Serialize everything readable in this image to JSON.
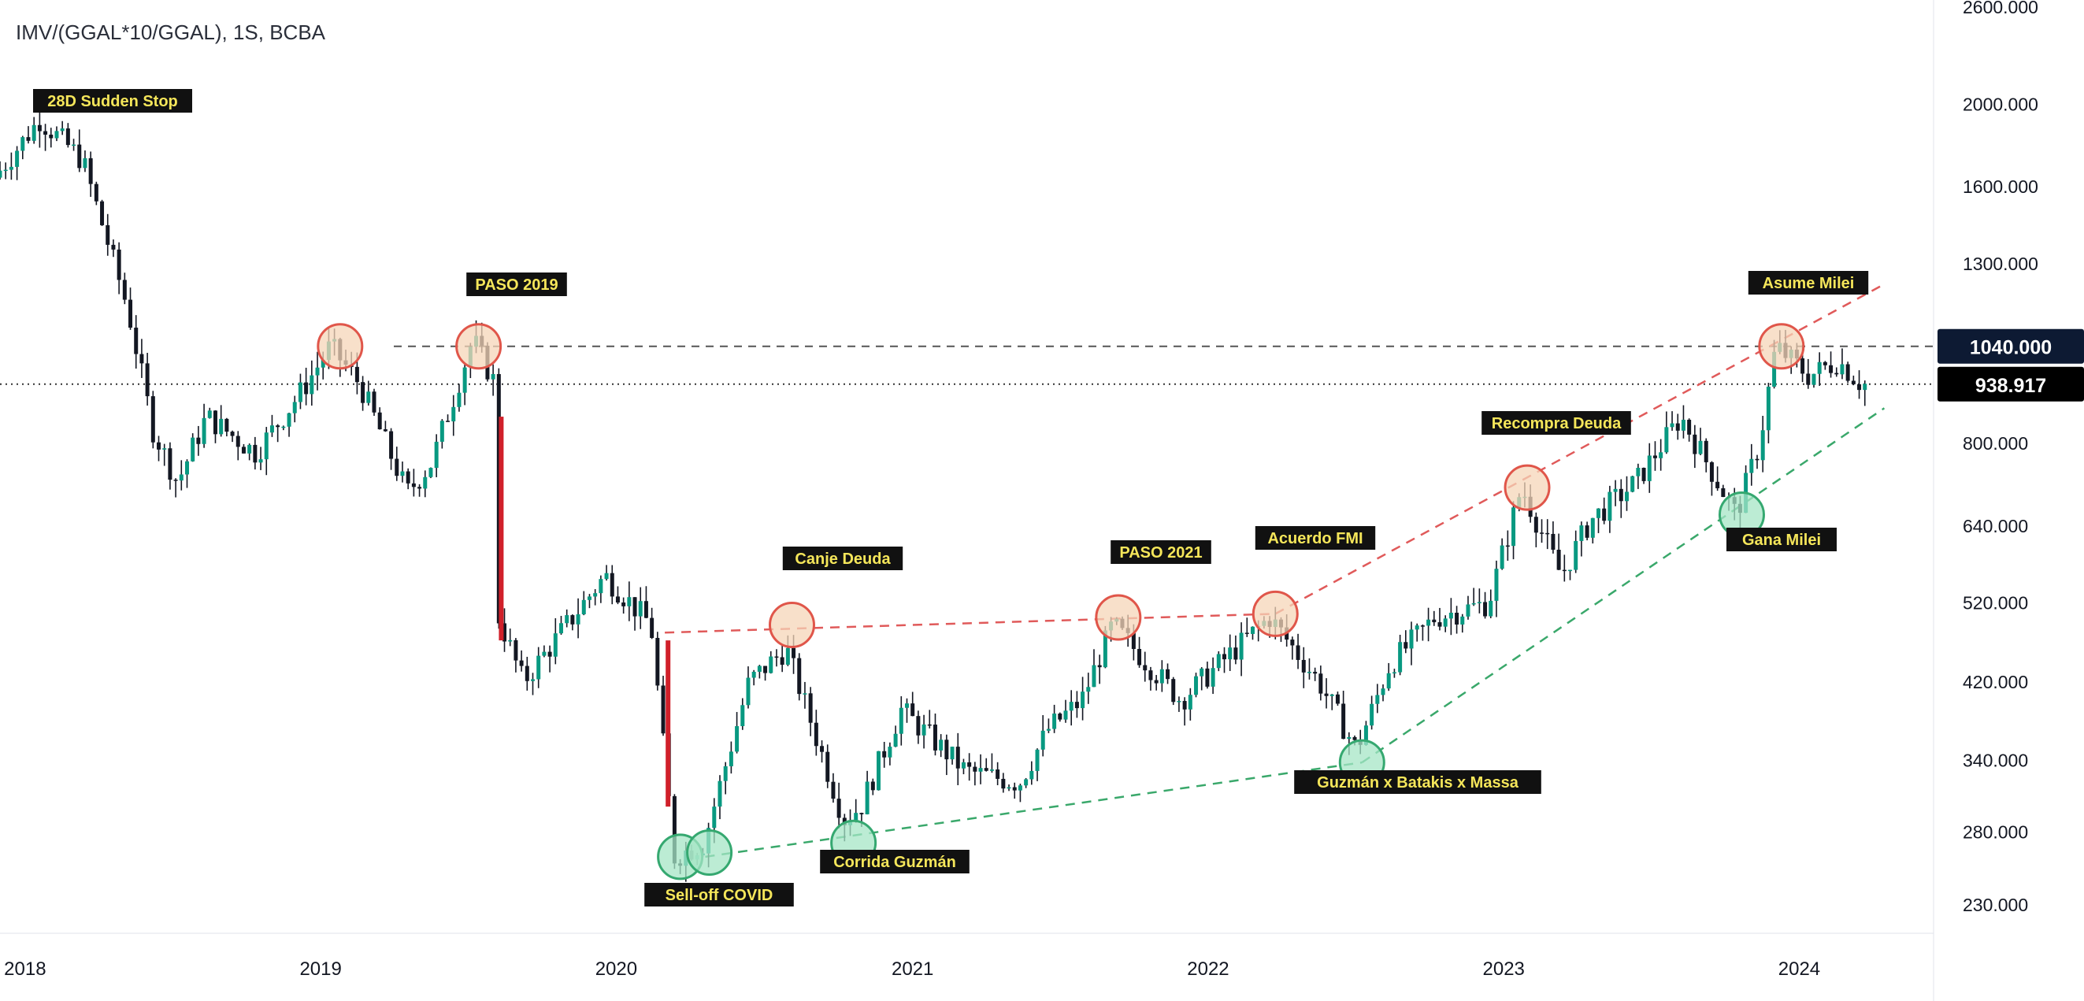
{
  "header": {
    "symbol_title": "IMV/(GGAL*10/GGAL), 1S, BCBA"
  },
  "price_scale": {
    "ticks": [
      "2600.000",
      "2000.000",
      "1600.000",
      "1300.000",
      "1040.000",
      "800.000",
      "640.000",
      "520.000",
      "420.000",
      "340.000",
      "280.000",
      "230.000"
    ],
    "tick_values": [
      2600,
      2000,
      1600,
      1300,
      1040,
      800,
      640,
      520,
      420,
      340,
      280,
      230
    ],
    "last_price_label": "938.917",
    "last_price": 938.917,
    "level_label": "1040.000",
    "level": 1040
  },
  "time_scale": {
    "labels": [
      "2018",
      "2019",
      "2020",
      "2021",
      "2022",
      "2023",
      "2024"
    ]
  },
  "colors": {
    "up": "#089981",
    "down": "#131722",
    "wick": "#131722",
    "red_line": "#e05a5a",
    "green_line": "#3aa86b",
    "grey_line": "#555555",
    "badge_dark": "#0d1a33",
    "badge_black": "#000000",
    "label_bg": "#111111",
    "label_text": "#f5e65a",
    "circle_red_fill": "#f6d6b8",
    "circle_red_stroke": "#e0564a",
    "circle_green_fill": "#a6e6c6",
    "circle_green_stroke": "#35a870"
  },
  "annotations": {
    "sudden_stop": "28D Sudden Stop",
    "paso_2019": "PASO 2019",
    "canje_deuda": "Canje Deuda",
    "paso_2021": "PASO 2021",
    "acuerdo_fmi": "Acuerdo FMI",
    "recompra_deuda": "Recompra Deuda",
    "asume_milei": "Asume Milei",
    "sell_off_covid": "Sell-off COVID",
    "corrida_guzman": "Corrida Guzmán",
    "guzman_batakis_massa": "Guzmán x Batakis x Massa",
    "gana_milei": "Gana Milei"
  },
  "chart_data": {
    "type": "candlestick",
    "title": "IMV/(GGAL*10/GGAL), 1S, BCBA",
    "interval": "1S",
    "scale": "log",
    "ylim": [
      220,
      2650
    ],
    "xlim": [
      "2017-12",
      "2024-06"
    ],
    "grid": false,
    "approx_path": [
      {
        "date": "2017-12-01",
        "value": 1640
      },
      {
        "date": "2018-01-26",
        "value": 1920
      },
      {
        "date": "2018-03-20",
        "value": 1720
      },
      {
        "date": "2018-05-15",
        "value": 1150
      },
      {
        "date": "2018-06-15",
        "value": 830
      },
      {
        "date": "2018-07-15",
        "value": 720
      },
      {
        "date": "2018-08-20",
        "value": 860
      },
      {
        "date": "2018-10-20",
        "value": 780
      },
      {
        "date": "2018-12-15",
        "value": 920
      },
      {
        "date": "2019-01-20",
        "value": 1040
      },
      {
        "date": "2019-02-25",
        "value": 940
      },
      {
        "date": "2019-04-25",
        "value": 700
      },
      {
        "date": "2019-05-25",
        "value": 760
      },
      {
        "date": "2019-07-15",
        "value": 1060
      },
      {
        "date": "2019-08-09",
        "value": 950
      },
      {
        "date": "2019-08-16",
        "value": 500
      },
      {
        "date": "2019-09-15",
        "value": 420
      },
      {
        "date": "2019-12-25",
        "value": 560
      },
      {
        "date": "2020-02-20",
        "value": 490
      },
      {
        "date": "2020-03-20",
        "value": 262
      },
      {
        "date": "2020-04-25",
        "value": 272
      },
      {
        "date": "2020-06-20",
        "value": 420
      },
      {
        "date": "2020-08-05",
        "value": 460
      },
      {
        "date": "2020-10-15",
        "value": 290
      },
      {
        "date": "2020-11-05",
        "value": 300
      },
      {
        "date": "2020-12-25",
        "value": 390
      },
      {
        "date": "2021-03-15",
        "value": 330
      },
      {
        "date": "2021-05-20",
        "value": 320
      },
      {
        "date": "2021-06-25",
        "value": 370
      },
      {
        "date": "2021-08-05",
        "value": 400
      },
      {
        "date": "2021-09-12",
        "value": 490
      },
      {
        "date": "2021-12-05",
        "value": 400
      },
      {
        "date": "2022-03-25",
        "value": 500
      },
      {
        "date": "2022-05-25",
        "value": 420
      },
      {
        "date": "2022-07-10",
        "value": 350
      },
      {
        "date": "2022-07-25",
        "value": 380
      },
      {
        "date": "2022-08-20",
        "value": 440
      },
      {
        "date": "2022-10-15",
        "value": 500
      },
      {
        "date": "2022-12-20",
        "value": 520
      },
      {
        "date": "2023-01-30",
        "value": 710
      },
      {
        "date": "2023-03-20",
        "value": 560
      },
      {
        "date": "2023-04-25",
        "value": 650
      },
      {
        "date": "2023-06-20",
        "value": 720
      },
      {
        "date": "2023-08-15",
        "value": 860
      },
      {
        "date": "2023-10-22",
        "value": 660
      },
      {
        "date": "2023-11-20",
        "value": 800
      },
      {
        "date": "2023-12-10",
        "value": 1040
      },
      {
        "date": "2024-01-20",
        "value": 960
      },
      {
        "date": "2024-02-25",
        "value": 1000
      },
      {
        "date": "2024-03-25",
        "value": 939
      }
    ],
    "horizontal_lines": [
      {
        "value": 1040,
        "style": "dashed"
      },
      {
        "value": 938.917,
        "style": "dotted"
      }
    ],
    "trendlines": [
      {
        "color": "red",
        "from": {
          "date": "2020-03-01",
          "value": 480
        },
        "to": {
          "date": "2022-03-25",
          "value": 505
        }
      },
      {
        "color": "red",
        "from": {
          "date": "2022-03-25",
          "value": 505
        },
        "to": {
          "date": "2024-04-15",
          "value": 1230
        }
      },
      {
        "color": "green",
        "from": {
          "date": "2020-04-20",
          "value": 262
        },
        "to": {
          "date": "2022-07-10",
          "value": 338
        }
      },
      {
        "color": "green",
        "from": {
          "date": "2022-07-10",
          "value": 338
        },
        "to": {
          "date": "2024-04-15",
          "value": 880
        }
      }
    ],
    "events": [
      {
        "label": "28D Sudden Stop",
        "date": "2017-12-28",
        "value": 1920
      },
      {
        "label": "PASO 2019",
        "date": "2019-07-15",
        "value": 1040
      },
      {
        "label": "Canje Deuda",
        "date": "2020-08-05",
        "value": 490
      },
      {
        "label": "PASO 2021",
        "date": "2021-09-12",
        "value": 500
      },
      {
        "label": "Acuerdo FMI",
        "date": "2022-03-25",
        "value": 505
      },
      {
        "label": "Recompra Deuda",
        "date": "2023-01-30",
        "value": 710
      },
      {
        "label": "Asume Milei",
        "date": "2023-12-10",
        "value": 1040
      },
      {
        "label": "Sell-off COVID",
        "date": "2020-03-20",
        "value": 262
      },
      {
        "label": "Corrida Guzmán",
        "date": "2020-10-20",
        "value": 272
      },
      {
        "label": "Guzmán x Batakis x Massa",
        "date": "2022-07-10",
        "value": 338
      },
      {
        "label": "Gana Milei",
        "date": "2023-10-22",
        "value": 660
      }
    ]
  }
}
